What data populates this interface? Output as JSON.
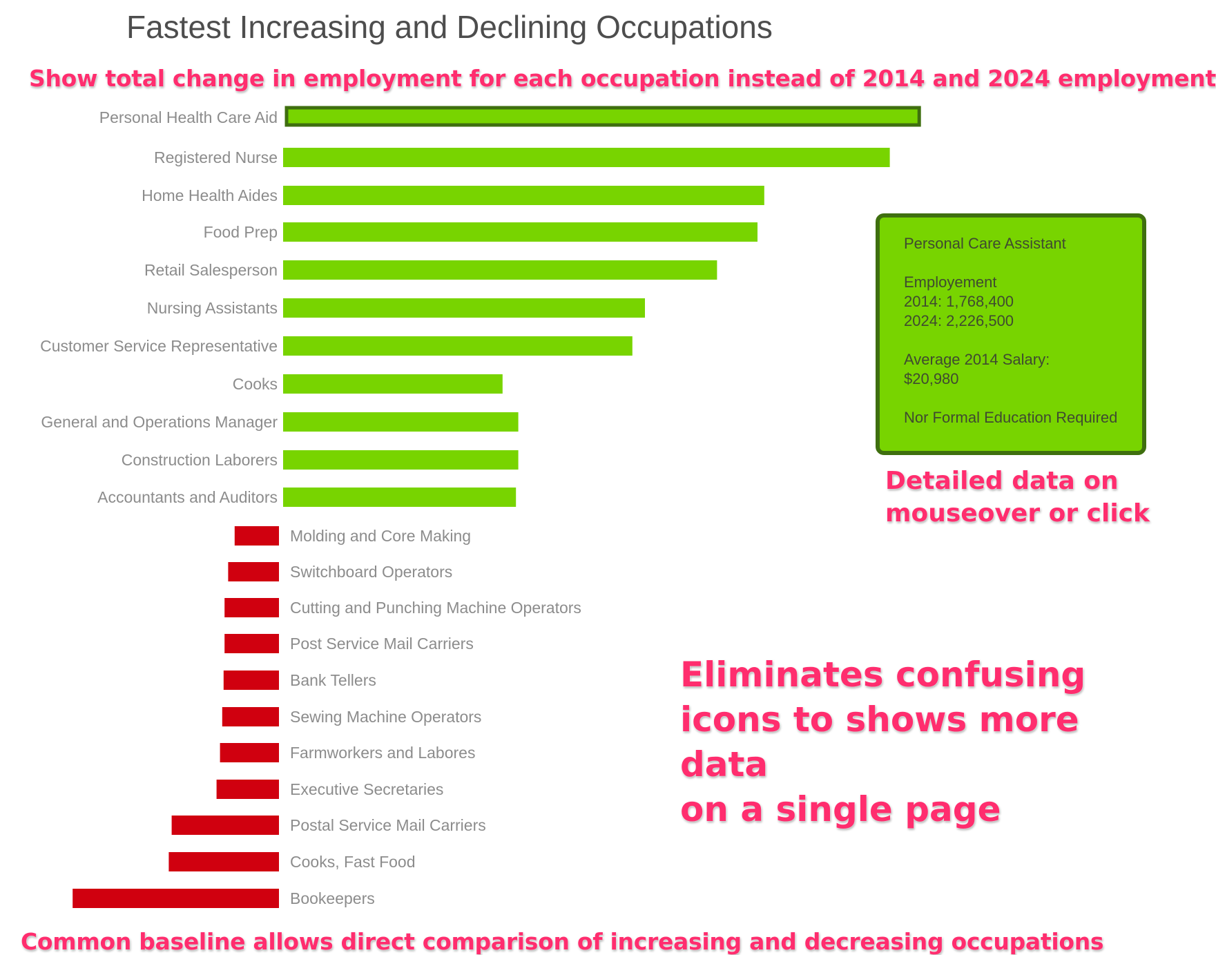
{
  "title": "Fastest Increasing and Declining Occupations",
  "annotations": {
    "top": "Show total change in employment for each occupation instead of 2014 and 2024 employment",
    "hover": "Detailed data on\nmouseover or click",
    "middle": "Eliminates confusing\nicons to shows more data\non a single page",
    "bottom": "Common baseline allows direct comparison of increasing and decreasing occupations"
  },
  "tooltip": {
    "name": "Personal Care Assistant",
    "employment_label": "Employement",
    "employment_2014": "2014: 1,768,400",
    "employment_2024": "2024: 2,226,500",
    "salary_label": "Average 2014 Salary:",
    "salary_value": "$20,980",
    "education": "Nor Formal Education Required"
  },
  "colors": {
    "increase": "#78d400",
    "decrease": "#d0000f",
    "highlight_border": "#3f6f0f",
    "annotation": "#ff2d6e",
    "label": "#8c8c8c"
  },
  "chart_data": {
    "type": "bar",
    "orientation": "horizontal",
    "highlighted": "Personal Health Care Aid",
    "categories": [
      "Personal Health Care Aid",
      "Registered Nurse",
      "Home Health Aides",
      "Food Prep",
      "Retail Salesperson",
      "Nursing Assistants",
      "Customer Service Representative",
      "Cooks",
      "General and Operations Manager",
      "Construction Laborers",
      "Accountants and Auditors",
      "Molding and Core Making",
      "Switchboard Operators",
      "Cutting and Punching Machine Operators",
      "Post Service Mail Carriers",
      "Bank Tellers",
      "Sewing Machine Operators",
      "Farmworkers and Labores",
      "Executive Secretaries",
      "Postal Service Mail Carriers",
      "Cooks, Fast Food",
      "Bookeepers"
    ],
    "values": [
      458100,
      439300,
      348400,
      343500,
      314200,
      262000,
      252900,
      158900,
      170300,
      170300,
      168600,
      -32100,
      -36800,
      -39400,
      -39400,
      -40100,
      -41100,
      -42700,
      -45200,
      -77700,
      -79800,
      -149400
    ],
    "xlabel": "",
    "ylabel": "",
    "grid": false,
    "legend": "none"
  }
}
